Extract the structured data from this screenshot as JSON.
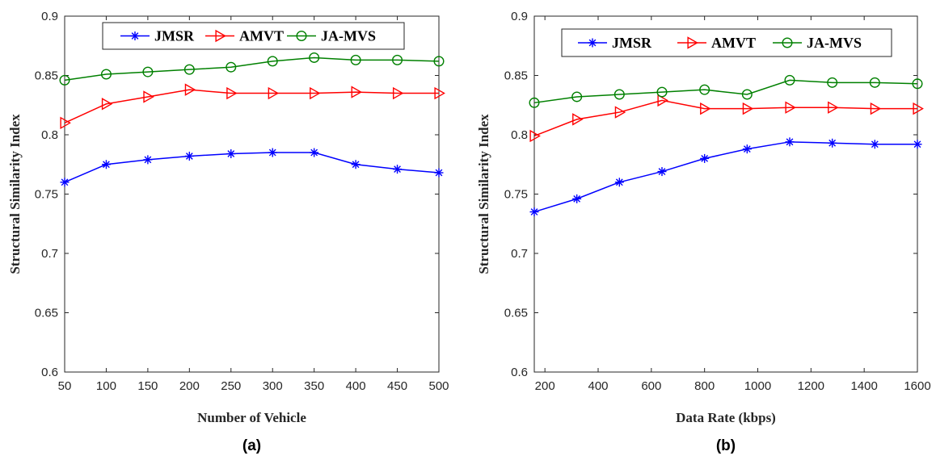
{
  "colors": {
    "JMSR": "#0000ff",
    "AMVT": "#ff0000",
    "JA-MVS": "#008000"
  },
  "chart_data": [
    {
      "type": "line",
      "caption": "(a)",
      "xlabel": "Number of Vehicle",
      "ylabel": "Structural Similarity Index",
      "xlim": [
        50,
        500
      ],
      "ylim": [
        0.6,
        0.9
      ],
      "xticks": [
        50,
        100,
        150,
        200,
        250,
        300,
        350,
        400,
        450,
        500
      ],
      "yticks": [
        0.6,
        0.65,
        0.7,
        0.75,
        0.8,
        0.85,
        0.9
      ],
      "ytick_labels": [
        "0.6",
        "0.65",
        "0.7",
        "0.75",
        "0.8",
        "0.85",
        "0.9"
      ],
      "legend_position": "top",
      "grid": false,
      "x": [
        50,
        100,
        150,
        200,
        250,
        300,
        350,
        400,
        450,
        500
      ],
      "series": [
        {
          "name": "JMSR",
          "marker": "asterisk",
          "values": [
            0.76,
            0.775,
            0.779,
            0.782,
            0.784,
            0.785,
            0.785,
            0.775,
            0.771,
            0.768
          ]
        },
        {
          "name": "AMVT",
          "marker": "triangle-right",
          "values": [
            0.81,
            0.826,
            0.832,
            0.838,
            0.835,
            0.835,
            0.835,
            0.836,
            0.835,
            0.835
          ]
        },
        {
          "name": "JA-MVS",
          "marker": "circle",
          "values": [
            0.846,
            0.851,
            0.853,
            0.855,
            0.857,
            0.862,
            0.865,
            0.863,
            0.863,
            0.862
          ]
        }
      ]
    },
    {
      "type": "line",
      "caption": "(b)",
      "xlabel": "Data Rate (kbps)",
      "ylabel": "Structural Similarity Index",
      "xlim": [
        160,
        1600
      ],
      "ylim": [
        0.6,
        0.9
      ],
      "xticks": [
        200,
        400,
        600,
        800,
        1000,
        1200,
        1400,
        1600
      ],
      "yticks": [
        0.6,
        0.65,
        0.7,
        0.75,
        0.8,
        0.85,
        0.9
      ],
      "ytick_labels": [
        "0.6",
        "0.65",
        "0.7",
        "0.75",
        "0.8",
        "0.85",
        "0.9"
      ],
      "legend_position": "top",
      "grid": false,
      "x": [
        160,
        320,
        480,
        640,
        800,
        960,
        1120,
        1280,
        1440,
        1600
      ],
      "series": [
        {
          "name": "JMSR",
          "marker": "asterisk",
          "values": [
            0.735,
            0.746,
            0.76,
            0.769,
            0.78,
            0.788,
            0.794,
            0.793,
            0.792,
            0.792
          ]
        },
        {
          "name": "AMVT",
          "marker": "triangle-right",
          "values": [
            0.799,
            0.813,
            0.819,
            0.829,
            0.822,
            0.822,
            0.823,
            0.823,
            0.822,
            0.822
          ]
        },
        {
          "name": "JA-MVS",
          "marker": "circle",
          "values": [
            0.827,
            0.832,
            0.834,
            0.836,
            0.838,
            0.834,
            0.846,
            0.844,
            0.844,
            0.843
          ]
        }
      ]
    }
  ]
}
